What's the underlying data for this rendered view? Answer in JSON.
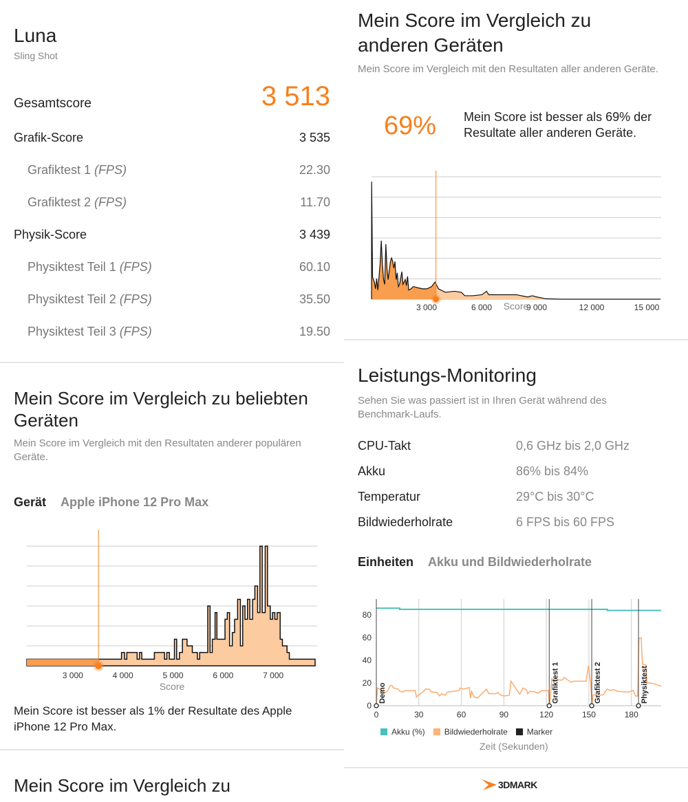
{
  "summary": {
    "title": "Luna",
    "subtitle": "Sling Shot",
    "total_label": "Gesamtscore",
    "total_value": "3 513",
    "rows": [
      {
        "label": "Grafik-Score",
        "unit": "",
        "value": "3 535",
        "sub": false
      },
      {
        "label": "Grafiktest 1 ",
        "unit": "(FPS)",
        "value": "22.30",
        "sub": true
      },
      {
        "label": "Grafiktest 2 ",
        "unit": "(FPS)",
        "value": "11.70",
        "sub": true
      },
      {
        "label": "Physik-Score",
        "unit": "",
        "value": "3 439",
        "sub": false
      },
      {
        "label": "Physiktest Teil 1 ",
        "unit": "(FPS)",
        "value": "60.10",
        "sub": true
      },
      {
        "label": "Physiktest Teil 2 ",
        "unit": "(FPS)",
        "value": "35.50",
        "sub": true
      },
      {
        "label": "Physiktest Teil 3 ",
        "unit": "(FPS)",
        "value": "19.50",
        "sub": true
      }
    ]
  },
  "popular": {
    "title": "Mein Score im Vergleich zu beliebten Geräten",
    "subtitle": "Mein Score im Vergleich mit den Resultaten anderer populären Geräte.",
    "device_label": "Gerät",
    "device_value": "Apple iPhone 12 Pro Max",
    "result": "Mein Score ist besser als 1% der Resultate des Apple iPhone 12 Pro Max."
  },
  "next_section": {
    "title": "Mein Score im Vergleich zu"
  },
  "all": {
    "title": "Mein Score im Vergleich zu anderen Geräten",
    "subtitle": "Mein Score im Vergleich mit den Resultaten aller anderen Geräte.",
    "percent": "69%",
    "result": "Mein Score ist besser als 69% der Resultate aller anderen Geräte."
  },
  "monitoring": {
    "title": "Leistungs-Monitoring",
    "subtitle": "Sehen Sie was passiert ist in Ihren Gerät während des Benchmark-Laufs.",
    "rows": [
      {
        "label": "CPU-Takt",
        "value": "0,6 GHz bis 2,0 GHz"
      },
      {
        "label": "Akku",
        "value": "86% bis 84%"
      },
      {
        "label": "Temperatur",
        "value": "29°C bis 30°C"
      },
      {
        "label": "Bildwiederholrate",
        "value": "6 FPS bis 60 FPS"
      }
    ],
    "units_label": "Einheiten",
    "units_value": "Akku und Bildwiederholrate"
  },
  "footer": {
    "logo": "3DMARK"
  },
  "colors": {
    "accent": "#f7801f",
    "fill_light": "#fdcba0",
    "fill_dark": "#f99d4f",
    "teal": "#4bbfbb",
    "marker": "#222222"
  },
  "chart_data": [
    {
      "type": "area",
      "name": "popular-histogram",
      "xlabel": "Score",
      "xlim": [
        2083,
        7835
      ],
      "ylim": [
        0,
        18
      ],
      "ticks": [
        "3 000",
        "4 000",
        "5 000",
        "6 000",
        "7 000"
      ],
      "tick_values": [
        3000,
        4000,
        5000,
        6000,
        7000
      ],
      "my_score": 3513,
      "steps": [
        [
          2083,
          1
        ],
        [
          3972,
          2
        ],
        [
          4032,
          1
        ],
        [
          4078,
          2
        ],
        [
          4284,
          1
        ],
        [
          4330,
          2
        ],
        [
          4376,
          1
        ],
        [
          4628,
          2
        ],
        [
          4830,
          1
        ],
        [
          4876,
          2
        ],
        [
          4927,
          1
        ],
        [
          5028,
          4
        ],
        [
          5073,
          1
        ],
        [
          5128,
          2
        ],
        [
          5188,
          4
        ],
        [
          5280,
          3
        ],
        [
          5385,
          2
        ],
        [
          5486,
          1
        ],
        [
          5532,
          2
        ],
        [
          5693,
          9
        ],
        [
          5739,
          2
        ],
        [
          5784,
          4
        ],
        [
          5839,
          8
        ],
        [
          5876,
          4
        ],
        [
          6037,
          7
        ],
        [
          6083,
          8
        ],
        [
          6128,
          3
        ],
        [
          6183,
          5
        ],
        [
          6229,
          7
        ],
        [
          6289,
          10
        ],
        [
          6344,
          3
        ],
        [
          6390,
          9
        ],
        [
          6436,
          7
        ],
        [
          6486,
          10
        ],
        [
          6532,
          7
        ],
        [
          6587,
          10
        ],
        [
          6633,
          12
        ],
        [
          6688,
          8
        ],
        [
          6734,
          18
        ],
        [
          6780,
          8
        ],
        [
          6839,
          18
        ],
        [
          6885,
          9
        ],
        [
          6940,
          7
        ],
        [
          6986,
          8
        ],
        [
          7032,
          7
        ],
        [
          7078,
          8
        ],
        [
          7138,
          4
        ],
        [
          7183,
          3
        ],
        [
          7275,
          2
        ],
        [
          7321,
          1
        ],
        [
          7835,
          0
        ]
      ]
    },
    {
      "type": "area",
      "name": "all-devices-distribution",
      "xlabel": "Score",
      "xlim": [
        0,
        15750
      ],
      "ylim": [
        0,
        6
      ],
      "ticks": [
        "3 000",
        "6 000",
        "9 000",
        "12 000",
        "15 000"
      ],
      "tick_values": [
        3000,
        6000,
        9000,
        12000,
        15000
      ],
      "my_score": 3513,
      "points": [
        [
          0,
          0
        ],
        [
          7,
          5.76
        ],
        [
          57,
          1.07
        ],
        [
          157,
          0.84
        ],
        [
          219,
          0.51
        ],
        [
          281,
          1.01
        ],
        [
          344,
          0.45
        ],
        [
          406,
          1.07
        ],
        [
          468,
          1.74
        ],
        [
          531,
          2.87
        ],
        [
          593,
          1.74
        ],
        [
          656,
          0.96
        ],
        [
          718,
          0.73
        ],
        [
          780,
          2.7
        ],
        [
          843,
          1.52
        ],
        [
          905,
          0.96
        ],
        [
          967,
          1.4
        ],
        [
          1030,
          1.85
        ],
        [
          1092,
          2.02
        ],
        [
          1155,
          1.85
        ],
        [
          1217,
          1.52
        ],
        [
          1279,
          1.85
        ],
        [
          1342,
          0.96
        ],
        [
          1404,
          1.29
        ],
        [
          1466,
          0.62
        ],
        [
          1529,
          0.73
        ],
        [
          1653,
          1.35
        ],
        [
          1716,
          0.73
        ],
        [
          1840,
          0.96
        ],
        [
          1903,
          0.67
        ],
        [
          1965,
          1.12
        ],
        [
          2027,
          0.45
        ],
        [
          2152,
          0.51
        ],
        [
          2277,
          0.62
        ],
        [
          2526,
          0.56
        ],
        [
          2776,
          0.51
        ],
        [
          3025,
          0.51
        ],
        [
          3274,
          0.62
        ],
        [
          3461,
          0.84
        ],
        [
          3524,
          0.73
        ],
        [
          3648,
          0.51
        ],
        [
          4023,
          0.34
        ],
        [
          4521,
          0.39
        ],
        [
          4895,
          0.34
        ],
        [
          5083,
          0.17
        ],
        [
          5519,
          0.17
        ],
        [
          6018,
          0.22
        ],
        [
          6267,
          0.39
        ],
        [
          6392,
          0.22
        ],
        [
          6641,
          0.22
        ],
        [
          7265,
          0.22
        ],
        [
          7888,
          0.22
        ],
        [
          8512,
          0.11
        ],
        [
          8761,
          0.17
        ],
        [
          9011,
          0.11
        ],
        [
          9509,
          0.02
        ],
        [
          10382,
          0
        ],
        [
          15744,
          0
        ]
      ]
    },
    {
      "type": "line",
      "name": "monitoring-chart",
      "xlabel": "Zeit (Sekunden)",
      "xlim": [
        0,
        201
      ],
      "ylim": [
        0,
        94
      ],
      "xticks": [
        0,
        30,
        60,
        90,
        120,
        150,
        180
      ],
      "yticks": [
        0,
        20,
        40,
        60,
        80
      ],
      "legend": [
        "Akku (%)",
        "Bildwiederholrate",
        "Marker"
      ],
      "akku": [
        [
          0,
          86
        ],
        [
          16.5,
          86
        ],
        [
          16.5,
          85
        ],
        [
          163,
          85
        ],
        [
          163,
          84
        ],
        [
          201,
          84
        ]
      ],
      "fps": [
        [
          0,
          0
        ],
        [
          0.8,
          15.6
        ],
        [
          2.4,
          14.6
        ],
        [
          4,
          12.6
        ],
        [
          6.5,
          11.6
        ],
        [
          8.1,
          13.6
        ],
        [
          9.7,
          17.6
        ],
        [
          11,
          18
        ],
        [
          12.1,
          15.6
        ],
        [
          13.8,
          15.2
        ],
        [
          15.4,
          14.6
        ],
        [
          17,
          12.6
        ],
        [
          18.6,
          12
        ],
        [
          20.2,
          13.2
        ],
        [
          27.5,
          13.2
        ],
        [
          28.3,
          7.6
        ],
        [
          29.9,
          9.6
        ],
        [
          32.4,
          11.6
        ],
        [
          34.8,
          14.6
        ],
        [
          37.2,
          14.6
        ],
        [
          38.8,
          12.2
        ],
        [
          42.9,
          11.6
        ],
        [
          44.5,
          8.6
        ],
        [
          46.1,
          10.6
        ],
        [
          48.6,
          9.2
        ],
        [
          50.2,
          12
        ],
        [
          53.4,
          12.6
        ],
        [
          58.3,
          13.2
        ],
        [
          59.1,
          15.6
        ],
        [
          61.5,
          14.6
        ],
        [
          63.1,
          15.2
        ],
        [
          65.6,
          16
        ],
        [
          66.4,
          6.6
        ],
        [
          67.2,
          12.6
        ],
        [
          68.8,
          8
        ],
        [
          71.2,
          6.6
        ],
        [
          73.7,
          9.6
        ],
        [
          77.7,
          14.6
        ],
        [
          79.3,
          10.6
        ],
        [
          84.2,
          10.6
        ],
        [
          85.8,
          11.6
        ],
        [
          87.4,
          9.6
        ],
        [
          89.8,
          8.6
        ],
        [
          93.9,
          9.2
        ],
        [
          95,
          21.6
        ],
        [
          97.1,
          18
        ],
        [
          98.7,
          14.6
        ],
        [
          101.2,
          10.2
        ],
        [
          103.6,
          15.6
        ],
        [
          106,
          14
        ],
        [
          106.8,
          10.6
        ],
        [
          108.4,
          12.6
        ],
        [
          111.7,
          12.2
        ],
        [
          114.1,
          11
        ],
        [
          116.5,
          13.2
        ],
        [
          121.7,
          13.2
        ],
        [
          122,
          0
        ],
        [
          122.7,
          5.6
        ],
        [
          123.8,
          23.9
        ],
        [
          125.4,
          22.5
        ],
        [
          127.9,
          22.9
        ],
        [
          131.1,
          22.5
        ],
        [
          132.7,
          24.9
        ],
        [
          135.2,
          22.5
        ],
        [
          137.6,
          20.6
        ],
        [
          139.2,
          21.6
        ],
        [
          148.1,
          21.6
        ],
        [
          149.7,
          35.5
        ],
        [
          151.3,
          19.6
        ],
        [
          152.2,
          1.6
        ],
        [
          153,
          9.6
        ],
        [
          156.2,
          9.2
        ],
        [
          160.2,
          9.6
        ],
        [
          162.7,
          14.6
        ],
        [
          165.1,
          13.6
        ],
        [
          167.5,
          14.2
        ],
        [
          170.8,
          12.6
        ],
        [
          178,
          12
        ],
        [
          181.3,
          13.6
        ],
        [
          182.9,
          8.6
        ],
        [
          184.5,
          8.6
        ],
        [
          185.3,
          59.5
        ],
        [
          186.9,
          59.9
        ],
        [
          187.8,
          36.5
        ],
        [
          190.2,
          36.1
        ],
        [
          191,
          19.9
        ],
        [
          194.2,
          19.9
        ],
        [
          197.5,
          18.6
        ],
        [
          201,
          17.2
        ]
      ],
      "markers": [
        {
          "t": 0,
          "label": "Demo"
        },
        {
          "t": 122,
          "label": "Grafiktest 1"
        },
        {
          "t": 152,
          "label": "Grafiktest 2"
        },
        {
          "t": 185,
          "label": "Physiktest"
        }
      ]
    }
  ]
}
